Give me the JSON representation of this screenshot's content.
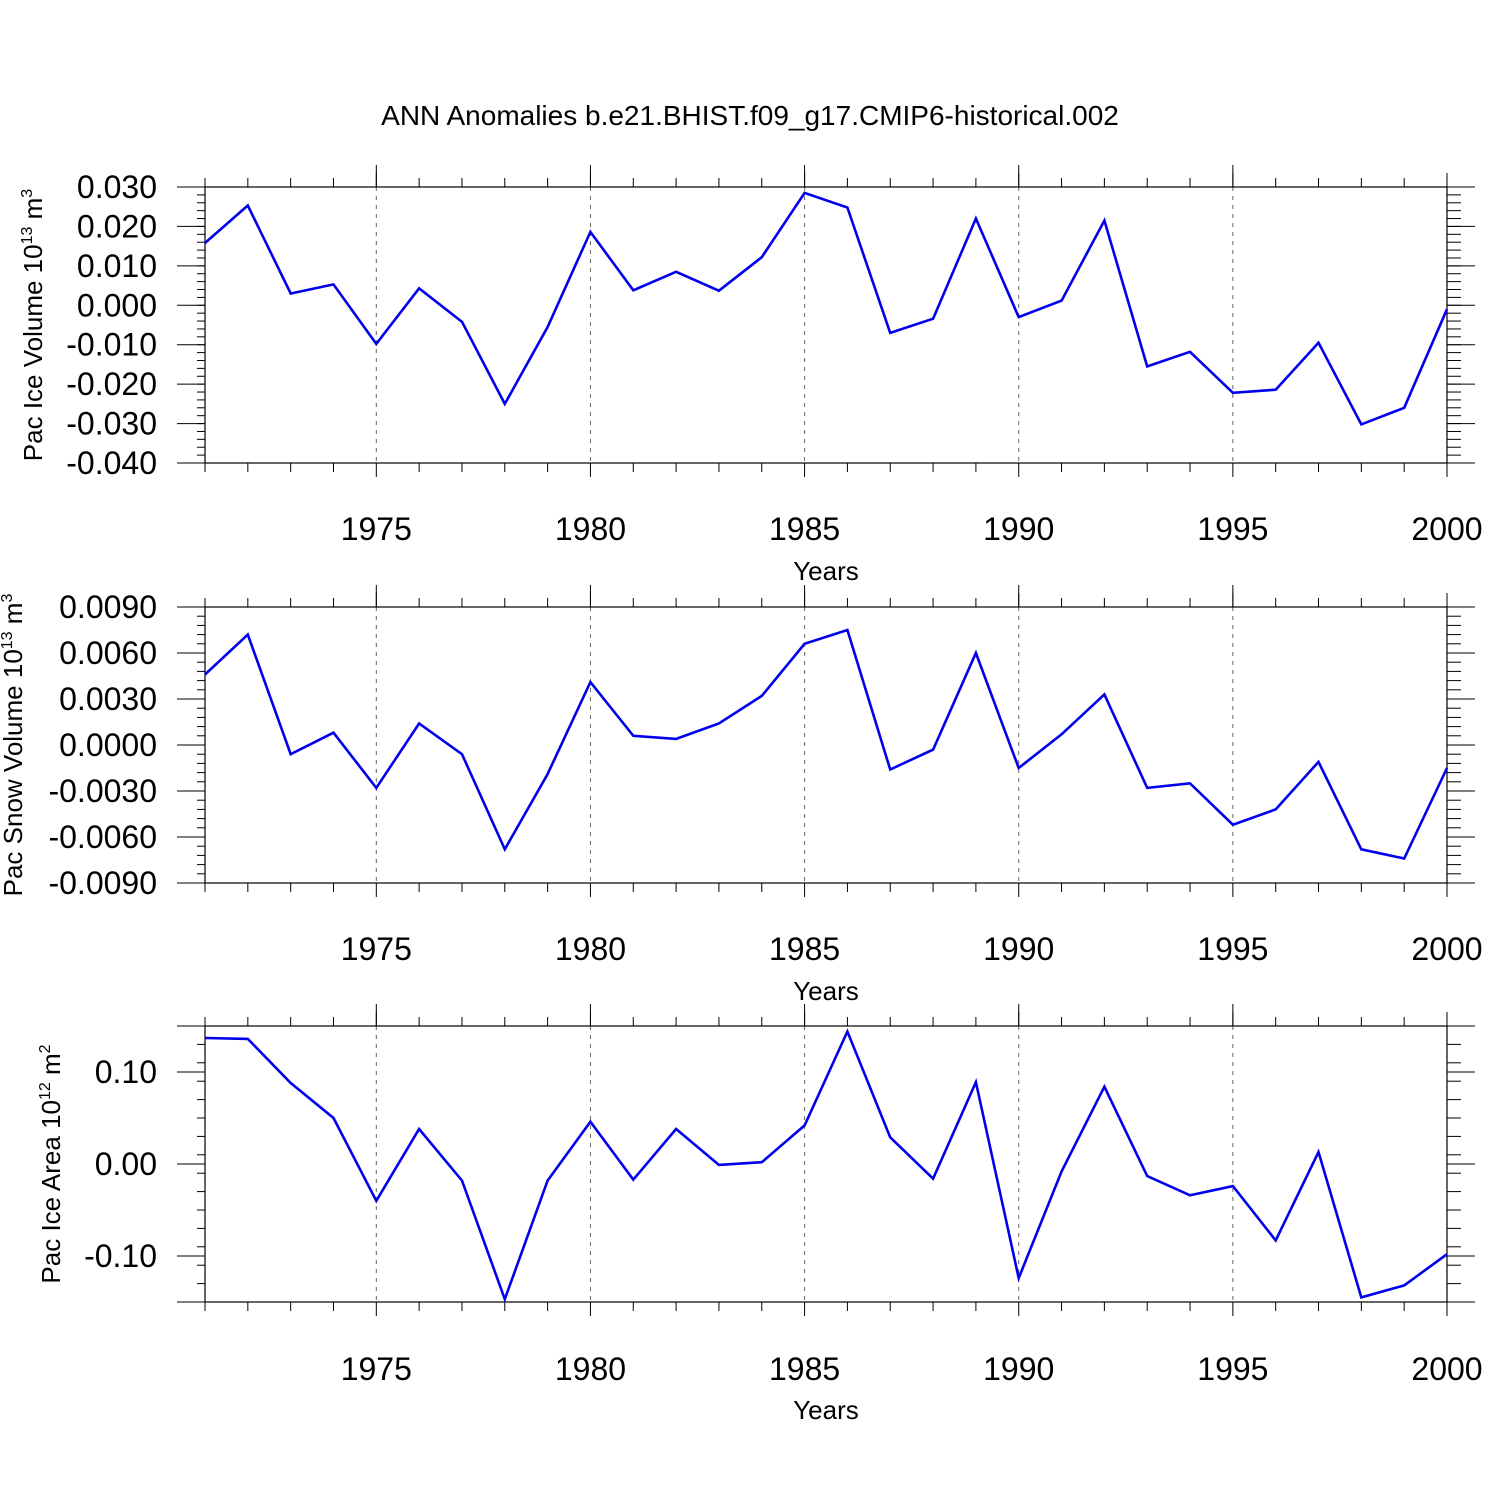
{
  "page_title": "ANN Anomalies b.e21.BHIST.f09_g17.CMIP6-historical.002",
  "colors": {
    "line": "#0000ee",
    "axis": "#000000",
    "grid": "#000000"
  },
  "chart_data": [
    {
      "type": "line",
      "title": "",
      "ylabel": "Pac Ice Volume 10",
      "ylabel_sup": "13",
      "ylabel_unit": " m",
      "ylabel_unit_sup": "3",
      "xlabel": "Years",
      "xlim": [
        1971,
        2000
      ],
      "ylim": [
        -0.04,
        0.03
      ],
      "x_ticks": [
        1975,
        1980,
        1985,
        1990,
        1995,
        2000
      ],
      "x_tick_labels": [
        "1975",
        "1980",
        "1985",
        "1990",
        "1995",
        "2000"
      ],
      "y_ticks": [
        -0.04,
        -0.03,
        -0.02,
        -0.01,
        0.0,
        0.01,
        0.02,
        0.03
      ],
      "y_tick_labels": [
        "-0.040",
        "-0.030",
        "-0.020",
        "-0.010",
        "0.000",
        "0.010",
        "0.020",
        "0.030"
      ],
      "grid": "dashed vertical at major x ticks",
      "series": [
        {
          "color": "#0000ee",
          "x": [
            1971,
            1972,
            1973,
            1974,
            1975,
            1976,
            1977,
            1978,
            1979,
            1980,
            1981,
            1982,
            1983,
            1984,
            1985,
            1986,
            1987,
            1988,
            1989,
            1990,
            1991,
            1992,
            1993,
            1994,
            1995,
            1996,
            1997,
            1998,
            1999,
            2000
          ],
          "values": [
            0.0158,
            0.0253,
            0.003,
            0.0053,
            -0.0098,
            0.0043,
            -0.0042,
            -0.025,
            -0.0055,
            0.0186,
            0.0038,
            0.0085,
            0.0037,
            0.0122,
            0.0285,
            0.0248,
            -0.007,
            -0.0034,
            0.022,
            -0.003,
            0.0012,
            0.0215,
            -0.0155,
            -0.0118,
            -0.0222,
            -0.0214,
            -0.0095,
            -0.0302,
            -0.026,
            -0.001
          ]
        }
      ]
    },
    {
      "type": "line",
      "title": "",
      "ylabel": "Pac Snow Volume 10",
      "ylabel_sup": "13",
      "ylabel_unit": " m",
      "ylabel_unit_sup": "3",
      "xlabel": "Years",
      "xlim": [
        1971,
        2000
      ],
      "ylim": [
        -0.009,
        0.009
      ],
      "x_ticks": [
        1975,
        1980,
        1985,
        1990,
        1995,
        2000
      ],
      "x_tick_labels": [
        "1975",
        "1980",
        "1985",
        "1990",
        "1995",
        "2000"
      ],
      "y_ticks": [
        -0.009,
        -0.006,
        -0.003,
        0.0,
        0.003,
        0.006,
        0.009
      ],
      "y_tick_labels": [
        "-0.0090",
        "-0.0060",
        "-0.0030",
        "0.0000",
        "0.0030",
        "0.0060",
        "0.0090"
      ],
      "grid": "dashed vertical at major x ticks",
      "series": [
        {
          "color": "#0000ee",
          "x": [
            1971,
            1972,
            1973,
            1974,
            1975,
            1976,
            1977,
            1978,
            1979,
            1980,
            1981,
            1982,
            1983,
            1984,
            1985,
            1986,
            1987,
            1988,
            1989,
            1990,
            1991,
            1992,
            1993,
            1994,
            1995,
            1996,
            1997,
            1998,
            1999,
            2000
          ],
          "values": [
            0.0046,
            0.0072,
            -0.0006,
            0.0008,
            -0.0028,
            0.0014,
            -0.0006,
            -0.0068,
            -0.0019,
            0.0041,
            0.0006,
            0.0004,
            0.0014,
            0.0032,
            0.0066,
            0.0075,
            -0.0016,
            -0.0003,
            0.006,
            -0.0015,
            0.0007,
            0.0033,
            -0.0028,
            -0.0025,
            -0.0052,
            -0.0042,
            -0.0011,
            -0.0068,
            -0.0074,
            -0.0015
          ]
        }
      ]
    },
    {
      "type": "line",
      "title": "",
      "ylabel": "Pac Ice Area 10",
      "ylabel_sup": "12",
      "ylabel_unit": " m",
      "ylabel_unit_sup": "2",
      "xlabel": "Years",
      "xlim": [
        1971,
        2000
      ],
      "ylim": [
        -0.15,
        0.15
      ],
      "x_ticks": [
        1975,
        1980,
        1985,
        1990,
        1995,
        2000
      ],
      "x_tick_labels": [
        "1975",
        "1980",
        "1985",
        "1990",
        "1995",
        "2000"
      ],
      "y_ticks": [
        -0.1,
        0.0,
        0.1
      ],
      "y_tick_labels": [
        "-0.10",
        "0.00",
        "0.10"
      ],
      "grid": "dashed vertical at major x ticks",
      "series": [
        {
          "color": "#0000ee",
          "x": [
            1971,
            1972,
            1973,
            1974,
            1975,
            1976,
            1977,
            1978,
            1979,
            1980,
            1981,
            1982,
            1983,
            1984,
            1985,
            1986,
            1987,
            1988,
            1989,
            1990,
            1991,
            1992,
            1993,
            1994,
            1995,
            1996,
            1997,
            1998,
            1999,
            2000
          ],
          "values": [
            0.137,
            0.136,
            0.088,
            0.05,
            -0.04,
            0.038,
            -0.018,
            -0.147,
            -0.018,
            0.046,
            -0.017,
            0.038,
            -0.001,
            0.002,
            0.042,
            0.144,
            0.029,
            -0.016,
            0.089,
            -0.124,
            -0.008,
            0.084,
            -0.013,
            -0.034,
            -0.024,
            -0.083,
            0.013,
            -0.145,
            -0.132,
            -0.098
          ]
        }
      ]
    }
  ]
}
